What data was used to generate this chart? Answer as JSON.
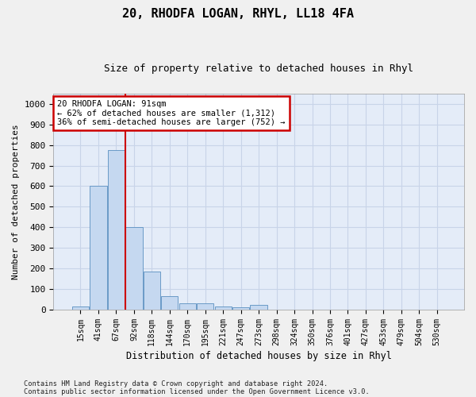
{
  "title": "20, RHODFA LOGAN, RHYL, LL18 4FA",
  "subtitle": "Size of property relative to detached houses in Rhyl",
  "xlabel": "Distribution of detached houses by size in Rhyl",
  "ylabel": "Number of detached properties",
  "footer1": "Contains HM Land Registry data © Crown copyright and database right 2024.",
  "footer2": "Contains public sector information licensed under the Open Government Licence v3.0.",
  "categories": [
    "15sqm",
    "41sqm",
    "67sqm",
    "92sqm",
    "118sqm",
    "144sqm",
    "170sqm",
    "195sqm",
    "221sqm",
    "247sqm",
    "273sqm",
    "298sqm",
    "324sqm",
    "350sqm",
    "376sqm",
    "401sqm",
    "427sqm",
    "453sqm",
    "479sqm",
    "504sqm",
    "530sqm"
  ],
  "values": [
    15,
    600,
    775,
    400,
    185,
    65,
    30,
    30,
    15,
    10,
    25,
    0,
    0,
    0,
    0,
    0,
    0,
    0,
    0,
    0,
    0
  ],
  "bar_color": "#c5d8f0",
  "bar_edge_color": "#5a8fc0",
  "vline_x": 2.5,
  "annotation_text": "20 RHODFA LOGAN: 91sqm\n← 62% of detached houses are smaller (1,312)\n36% of semi-detached houses are larger (752) →",
  "annotation_box_color": "#ffffff",
  "annotation_box_edge": "#cc0000",
  "vline_color": "#cc0000",
  "ylim": [
    0,
    1050
  ],
  "yticks": [
    0,
    100,
    200,
    300,
    400,
    500,
    600,
    700,
    800,
    900,
    1000
  ],
  "grid_color": "#c8d4e8",
  "bg_color": "#e4ecf8",
  "fig_bg": "#f0f0f0",
  "title_fontsize": 11,
  "subtitle_fontsize": 9
}
